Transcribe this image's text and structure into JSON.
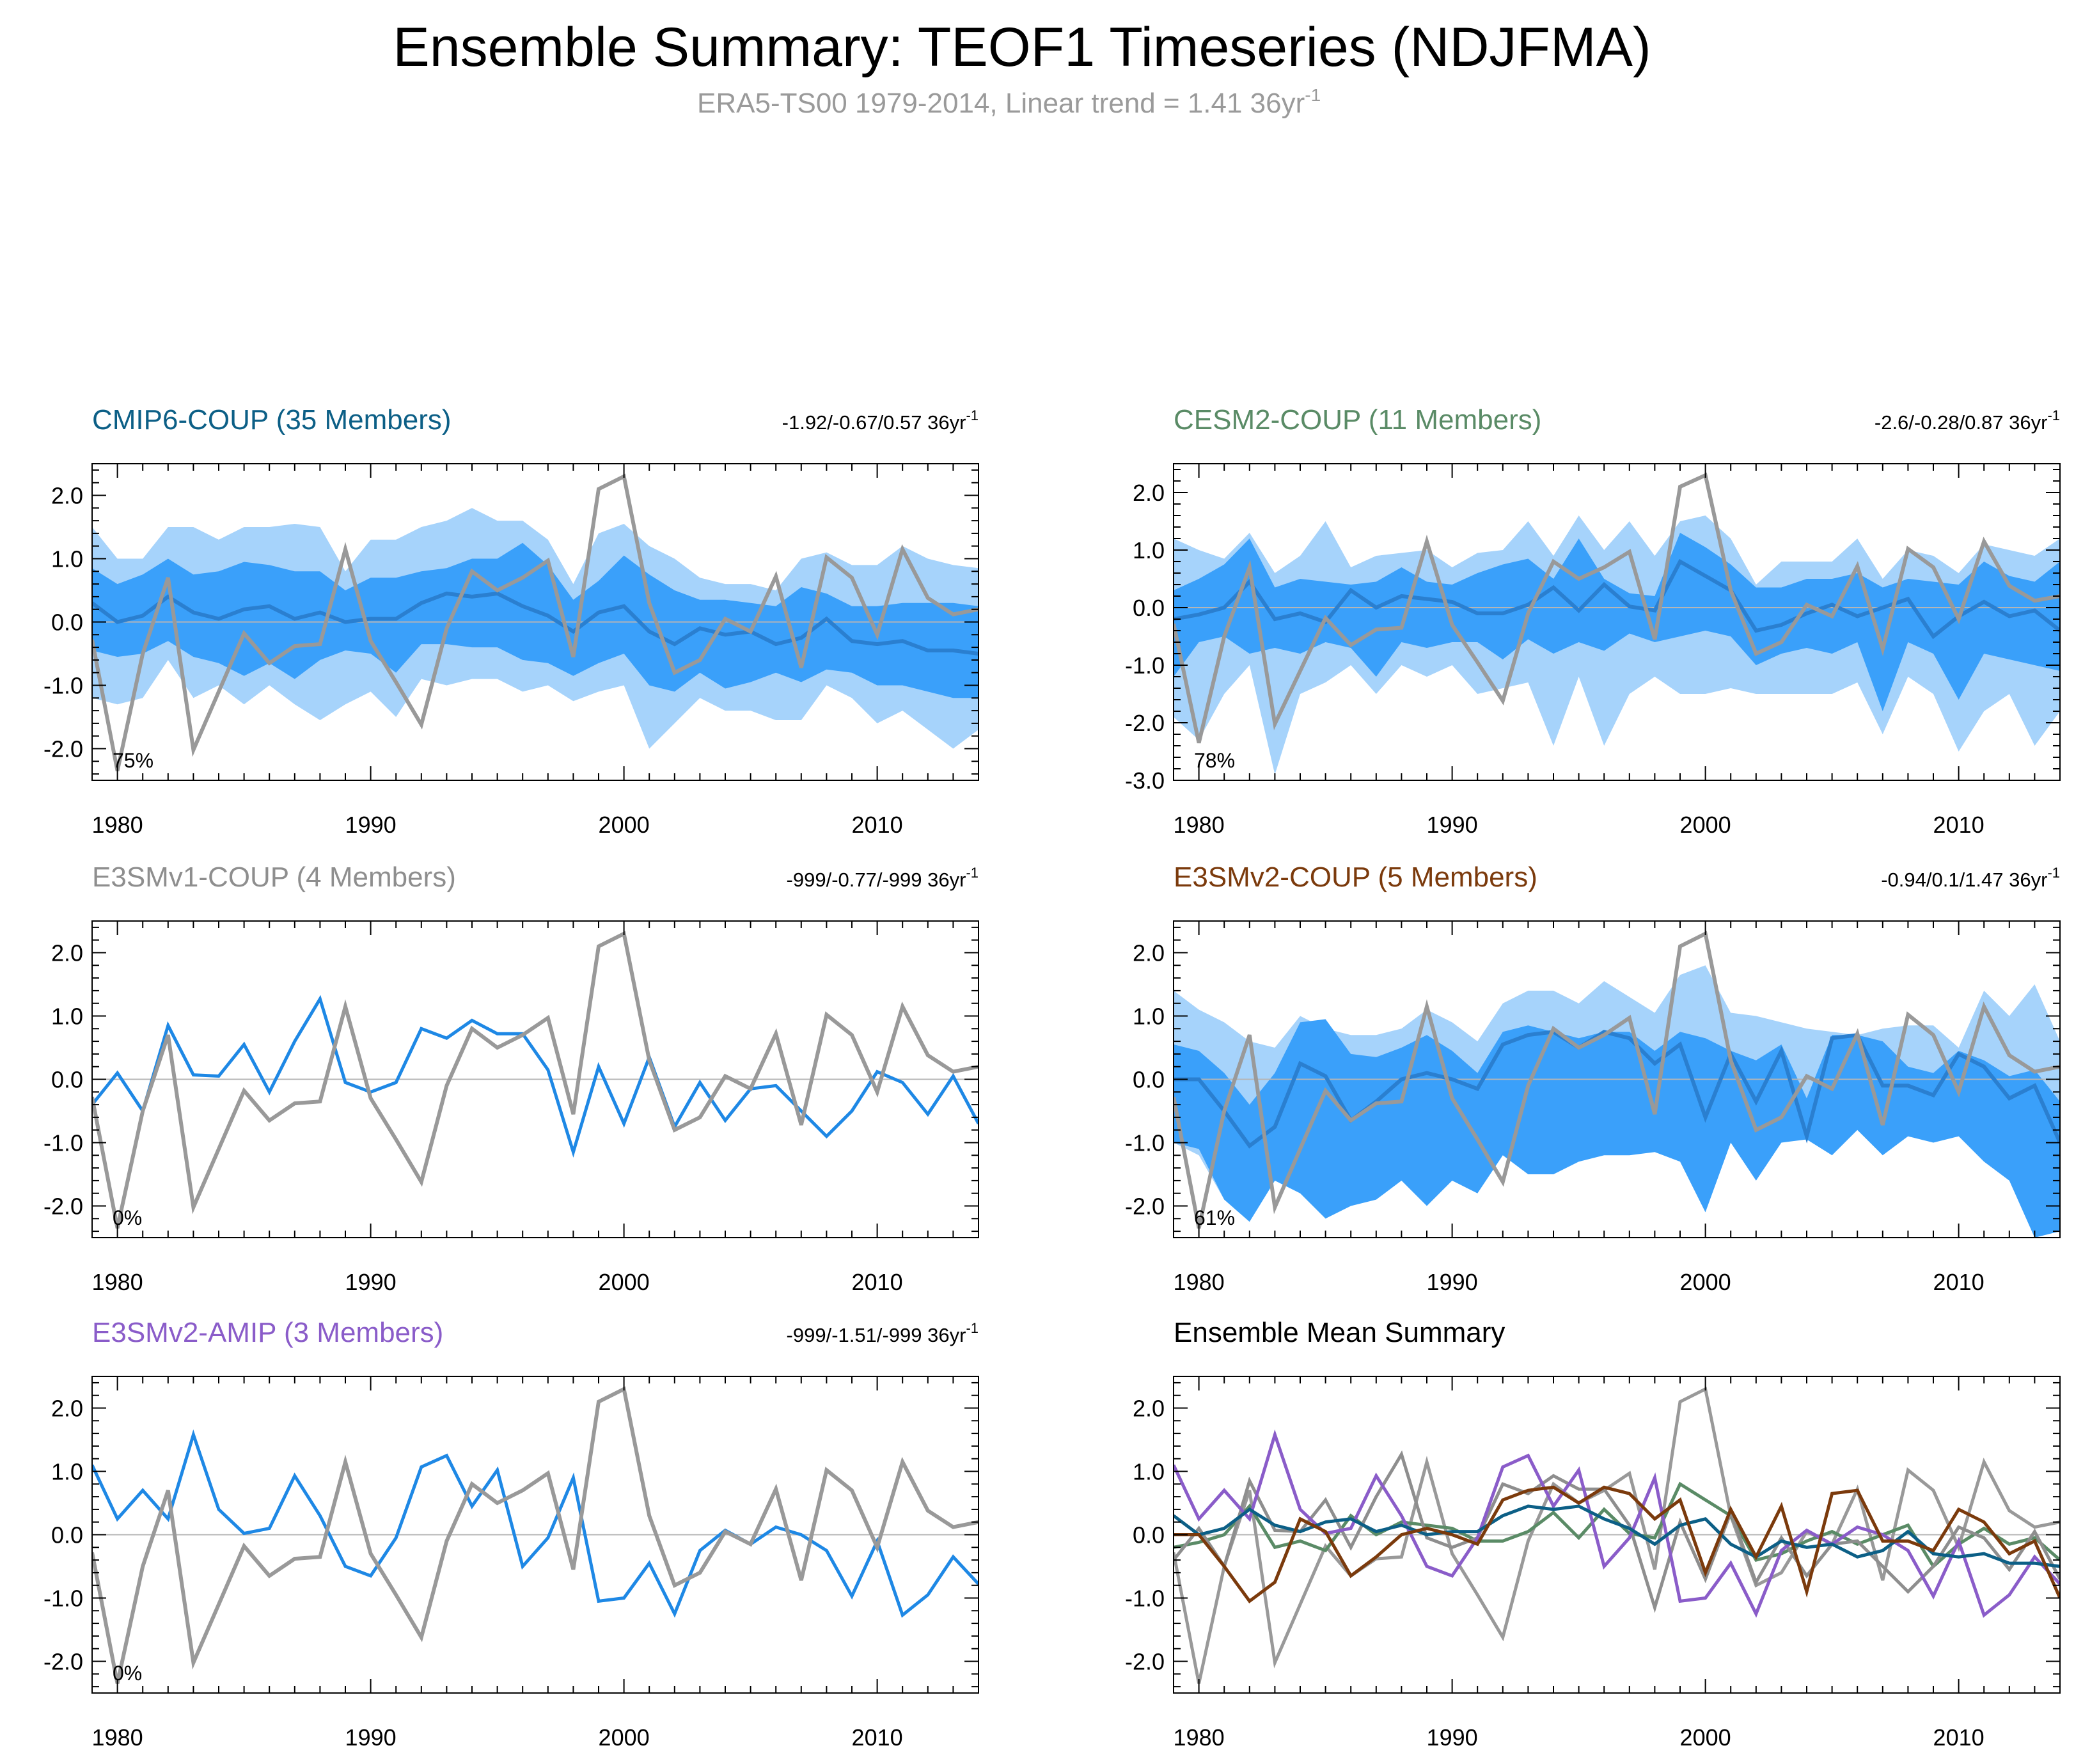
{
  "figure": {
    "title": "Ensemble Summary: TEOF1 Timeseries (NDJFMA)",
    "subtitle": "ERA5-TS00 1979-2014, Linear trend = 1.41 36yr",
    "subtitle_sup": "-1"
  },
  "colors": {
    "observed": "#999999",
    "member": "#1e88e5",
    "band_outer": "#a6d3fb",
    "band_inner": "#3aa0fa",
    "band_mean": "#2a7fd0",
    "cmip6": "#0c5f86",
    "cesm2": "#5a8b66",
    "e3smv1": "#8e8e8e",
    "e3smv2coup": "#7b3a0c",
    "e3smv2amip": "#8a5cc9",
    "black": "#000000"
  },
  "chart_data": [
    {
      "id": "cmip6",
      "type": "line",
      "title": "CMIP6-COUP (35 Members)",
      "title_color": "#0c5f86",
      "trend_text": "-1.92/-0.67/0.57 36yr",
      "trend_sup": "-1",
      "pct_label": "75%",
      "xlim": [
        1979,
        2014
      ],
      "ylim": [
        -2.5,
        2.5
      ],
      "yticks": [
        -2.0,
        -1.0,
        0.0,
        1.0,
        2.0
      ],
      "ytick_labels": [
        "-2.0",
        "-1.0",
        "0.0",
        "1.0",
        "2.0"
      ],
      "xticks": [
        1980,
        1990,
        2000,
        2010
      ],
      "xtick_labels": [
        "1980",
        "1990",
        "2000",
        "2010"
      ],
      "years_start": 1979,
      "band_outer_upper": [
        1.5,
        1.0,
        1.0,
        1.5,
        1.5,
        1.3,
        1.5,
        1.5,
        1.55,
        1.5,
        0.8,
        1.3,
        1.3,
        1.5,
        1.6,
        1.8,
        1.6,
        1.6,
        1.3,
        0.6,
        1.4,
        1.55,
        1.2,
        1.0,
        0.7,
        0.6,
        0.6,
        0.5,
        1.0,
        1.1,
        0.9,
        0.9,
        1.2,
        1.0,
        0.9,
        0.85
      ],
      "band_outer_lower": [
        -1.2,
        -1.3,
        -1.2,
        -0.6,
        -1.2,
        -1.0,
        -1.3,
        -1.0,
        -1.3,
        -1.55,
        -1.3,
        -1.1,
        -1.5,
        -0.9,
        -1.0,
        -0.9,
        -0.9,
        -1.1,
        -1.0,
        -1.25,
        -1.1,
        -1.0,
        -2.0,
        -1.6,
        -1.2,
        -1.4,
        -1.4,
        -1.55,
        -1.55,
        -1.0,
        -1.2,
        -1.6,
        -1.4,
        -1.7,
        -2.0,
        -1.7
      ],
      "band_inner_upper": [
        0.85,
        0.6,
        0.75,
        1.0,
        0.75,
        0.8,
        0.95,
        0.9,
        0.8,
        0.8,
        0.5,
        0.7,
        0.7,
        0.8,
        0.85,
        1.0,
        1.0,
        1.25,
        0.9,
        0.35,
        0.65,
        1.05,
        0.75,
        0.5,
        0.35,
        0.35,
        0.3,
        0.25,
        0.55,
        0.45,
        0.25,
        0.25,
        0.3,
        0.3,
        0.3,
        0.25
      ],
      "band_inner_lower": [
        -0.45,
        -0.55,
        -0.5,
        -0.3,
        -0.55,
        -0.65,
        -0.85,
        -0.65,
        -0.9,
        -0.6,
        -0.45,
        -0.5,
        -0.8,
        -0.35,
        -0.35,
        -0.4,
        -0.4,
        -0.6,
        -0.65,
        -0.85,
        -0.65,
        -0.5,
        -1.0,
        -1.1,
        -0.8,
        -1.05,
        -0.95,
        -0.8,
        -0.95,
        -0.75,
        -0.8,
        -1.0,
        -1.0,
        -1.1,
        -1.2,
        -1.2
      ],
      "mean": [
        0.3,
        0.0,
        0.1,
        0.4,
        0.15,
        0.05,
        0.2,
        0.25,
        0.05,
        0.15,
        0.0,
        0.05,
        0.05,
        0.3,
        0.45,
        0.4,
        0.45,
        0.25,
        0.1,
        -0.15,
        0.15,
        0.25,
        -0.15,
        -0.35,
        -0.1,
        -0.2,
        -0.15,
        -0.35,
        -0.25,
        0.05,
        -0.3,
        -0.35,
        -0.3,
        -0.45,
        -0.45,
        -0.5
      ],
      "mean_color": "#2a7fd0",
      "observed": [
        -0.28,
        -2.35,
        -0.5,
        0.7,
        -2.02,
        -1.1,
        -0.18,
        -0.65,
        -0.38,
        -0.35,
        1.15,
        -0.3,
        -0.95,
        -1.62,
        -0.1,
        0.8,
        0.5,
        0.7,
        0.97,
        -0.55,
        2.1,
        2.3,
        0.3,
        -0.8,
        -0.6,
        0.05,
        -0.15,
        0.72,
        -0.72,
        1.02,
        0.7,
        -0.2,
        1.15,
        0.38,
        0.12,
        0.2
      ]
    },
    {
      "id": "cesm2",
      "type": "line",
      "title": "CESM2-COUP (11 Members)",
      "title_color": "#5a8b66",
      "trend_text": "-2.6/-0.28/0.87 36yr",
      "trend_sup": "-1",
      "pct_label": "78%",
      "xlim": [
        1979,
        2014
      ],
      "ylim": [
        -3.0,
        2.5
      ],
      "yticks": [
        -3.0,
        -2.0,
        -1.0,
        0.0,
        1.0,
        2.0
      ],
      "ytick_labels": [
        "-3.0",
        "-2.0",
        "-1.0",
        "0.0",
        "1.0",
        "2.0"
      ],
      "xticks": [
        1980,
        1990,
        2000,
        2010
      ],
      "xtick_labels": [
        "1980",
        "1990",
        "2000",
        "2010"
      ],
      "years_start": 1979,
      "band_outer_upper": [
        1.2,
        1.0,
        0.85,
        1.3,
        0.6,
        0.9,
        1.5,
        0.7,
        0.9,
        0.95,
        1.0,
        0.7,
        0.95,
        1.0,
        1.5,
        0.9,
        1.6,
        1.0,
        1.5,
        0.9,
        1.5,
        1.6,
        1.2,
        0.4,
        0.8,
        0.8,
        0.8,
        1.2,
        0.5,
        1.0,
        0.9,
        0.6,
        1.1,
        1.0,
        0.9,
        1.2
      ],
      "band_outer_lower": [
        -1.9,
        -2.3,
        -1.5,
        -1.0,
        -2.9,
        -1.5,
        -1.3,
        -1.0,
        -1.5,
        -1.0,
        -1.2,
        -1.0,
        -1.5,
        -1.4,
        -1.3,
        -2.4,
        -1.2,
        -2.4,
        -1.5,
        -1.2,
        -1.5,
        -1.5,
        -1.4,
        -1.5,
        -1.5,
        -1.5,
        -1.5,
        -1.3,
        -2.2,
        -1.2,
        -1.5,
        -2.5,
        -1.8,
        -1.5,
        -2.4,
        -1.8
      ],
      "band_inner_upper": [
        0.3,
        0.5,
        0.75,
        1.2,
        0.35,
        0.5,
        0.45,
        0.4,
        0.45,
        0.7,
        0.45,
        0.4,
        0.6,
        0.75,
        0.85,
        0.5,
        1.2,
        0.5,
        0.25,
        0.2,
        1.3,
        1.05,
        0.75,
        0.35,
        0.35,
        0.5,
        0.5,
        0.6,
        0.35,
        0.5,
        0.45,
        0.4,
        0.8,
        0.55,
        0.45,
        0.8
      ],
      "band_inner_lower": [
        -1.2,
        -0.6,
        -0.5,
        -0.8,
        -0.7,
        -0.8,
        -0.6,
        -0.7,
        -1.2,
        -0.6,
        -0.7,
        -0.6,
        -0.6,
        -0.9,
        -0.55,
        -0.8,
        -0.6,
        -0.75,
        -0.45,
        -0.6,
        -0.5,
        -0.4,
        -0.5,
        -1.0,
        -0.8,
        -0.7,
        -0.8,
        -0.6,
        -1.8,
        -0.6,
        -0.8,
        -1.6,
        -0.8,
        -0.9,
        -1.0,
        -1.1
      ],
      "mean": [
        -0.2,
        -0.12,
        0.0,
        0.45,
        -0.2,
        -0.1,
        -0.25,
        0.3,
        0.0,
        0.2,
        0.15,
        0.1,
        -0.1,
        -0.1,
        0.05,
        0.35,
        -0.05,
        0.4,
        0.02,
        -0.05,
        0.8,
        0.55,
        0.3,
        -0.4,
        -0.3,
        -0.1,
        0.05,
        -0.15,
        0.0,
        0.15,
        -0.5,
        -0.15,
        0.1,
        -0.15,
        -0.05,
        -0.4
      ],
      "mean_color": "#2a7fd0",
      "observed": [
        -0.28,
        -2.35,
        -0.5,
        0.7,
        -2.02,
        -1.1,
        -0.18,
        -0.65,
        -0.38,
        -0.35,
        1.15,
        -0.3,
        -0.95,
        -1.62,
        -0.1,
        0.8,
        0.5,
        0.7,
        0.97,
        -0.55,
        2.1,
        2.3,
        0.3,
        -0.8,
        -0.6,
        0.05,
        -0.15,
        0.72,
        -0.72,
        1.02,
        0.7,
        -0.2,
        1.15,
        0.38,
        0.12,
        0.2
      ]
    },
    {
      "id": "e3smv1",
      "type": "line",
      "title": "E3SMv1-COUP (4 Members)",
      "title_color": "#8e8e8e",
      "trend_text": "-999/-0.77/-999 36yr",
      "trend_sup": "-1",
      "pct_label": "0%",
      "xlim": [
        1979,
        2014
      ],
      "ylim": [
        -2.5,
        2.5
      ],
      "yticks": [
        -2.0,
        -1.0,
        0.0,
        1.0,
        2.0
      ],
      "ytick_labels": [
        "-2.0",
        "-1.0",
        "0.0",
        "1.0",
        "2.0"
      ],
      "xticks": [
        1980,
        1990,
        2000,
        2010
      ],
      "xtick_labels": [
        "1980",
        "1990",
        "2000",
        "2010"
      ],
      "years_start": 1979,
      "member": [
        -0.4,
        0.1,
        -0.5,
        0.85,
        0.07,
        0.05,
        0.55,
        -0.2,
        0.6,
        1.27,
        -0.05,
        -0.2,
        -0.05,
        0.8,
        0.65,
        0.93,
        0.72,
        0.72,
        0.15,
        -1.15,
        0.2,
        -0.7,
        0.35,
        -0.75,
        -0.05,
        -0.65,
        -0.15,
        -0.1,
        -0.5,
        -0.9,
        -0.5,
        0.12,
        -0.05,
        -0.55,
        0.05,
        -0.7
      ],
      "observed": [
        -0.28,
        -2.35,
        -0.5,
        0.7,
        -2.02,
        -1.1,
        -0.18,
        -0.65,
        -0.38,
        -0.35,
        1.15,
        -0.3,
        -0.95,
        -1.62,
        -0.1,
        0.8,
        0.5,
        0.7,
        0.97,
        -0.55,
        2.1,
        2.3,
        0.3,
        -0.8,
        -0.6,
        0.05,
        -0.15,
        0.72,
        -0.72,
        1.02,
        0.7,
        -0.2,
        1.15,
        0.38,
        0.12,
        0.2
      ]
    },
    {
      "id": "e3smv2coup",
      "type": "line",
      "title": "E3SMv2-COUP (5 Members)",
      "title_color": "#7b3a0c",
      "trend_text": "-0.94/0.1/1.47 36yr",
      "trend_sup": "-1",
      "pct_label": "61%",
      "xlim": [
        1979,
        2014
      ],
      "ylim": [
        -2.5,
        2.5
      ],
      "yticks": [
        -2.0,
        -1.0,
        0.0,
        1.0,
        2.0
      ],
      "ytick_labels": [
        "-2.0",
        "-1.0",
        "0.0",
        "1.0",
        "2.0"
      ],
      "xticks": [
        1980,
        1990,
        2000,
        2010
      ],
      "xtick_labels": [
        "1980",
        "1990",
        "2000",
        "2010"
      ],
      "years_start": 1979,
      "band_outer_upper": [
        1.4,
        1.1,
        0.9,
        0.6,
        0.5,
        1.0,
        0.8,
        0.7,
        0.7,
        0.8,
        1.1,
        0.9,
        0.6,
        1.2,
        1.4,
        1.4,
        1.2,
        1.55,
        1.3,
        1.05,
        1.65,
        1.8,
        1.05,
        1.0,
        0.9,
        0.8,
        0.75,
        0.7,
        0.8,
        0.85,
        0.85,
        0.5,
        1.4,
        1.0,
        1.5,
        0.6
      ],
      "band_outer_lower": [
        -1.0,
        -1.2,
        -1.9,
        -1.9,
        -1.0,
        -1.0,
        -1.5,
        -1.3,
        -1.3,
        -1.1,
        -1.1,
        -0.6,
        -0.9,
        -1.1,
        -1.1,
        -1.3,
        -0.7,
        -0.6,
        -1.1,
        -1.0,
        -1.0,
        -1.2,
        -0.6,
        -0.7,
        -0.5,
        -0.5,
        -0.7,
        -0.5,
        -1.0,
        -0.8,
        -0.9,
        -0.75,
        -1.1,
        -1.4,
        -2.4,
        -1.5
      ],
      "band_inner_upper": [
        0.55,
        0.45,
        0.1,
        -0.4,
        0.1,
        0.9,
        0.95,
        0.4,
        0.35,
        0.5,
        0.7,
        0.45,
        0.1,
        0.75,
        0.85,
        0.75,
        0.65,
        0.75,
        0.75,
        0.45,
        0.75,
        0.65,
        0.45,
        0.3,
        0.55,
        -0.3,
        0.7,
        0.7,
        0.6,
        0.2,
        0.1,
        0.45,
        0.3,
        0.05,
        0.15,
        -0.35
      ],
      "band_inner_lower": [
        -1.0,
        -1.1,
        -1.9,
        -2.25,
        -1.6,
        -1.8,
        -2.2,
        -2.0,
        -1.9,
        -1.6,
        -2.0,
        -1.6,
        -1.8,
        -1.2,
        -1.5,
        -1.5,
        -1.3,
        -1.2,
        -1.2,
        -1.15,
        -1.3,
        -2.1,
        -1.0,
        -1.6,
        -1.0,
        -0.95,
        -1.2,
        -0.8,
        -1.2,
        -0.9,
        -1.0,
        -0.9,
        -1.3,
        -1.6,
        -2.5,
        -2.4
      ],
      "mean": [
        0.0,
        0.0,
        -0.5,
        -1.05,
        -0.75,
        0.25,
        0.05,
        -0.65,
        -0.35,
        0.0,
        0.1,
        0.0,
        -0.15,
        0.55,
        0.7,
        0.75,
        0.5,
        0.75,
        0.65,
        0.25,
        0.55,
        -0.6,
        0.4,
        -0.35,
        0.45,
        -0.9,
        0.65,
        0.7,
        -0.1,
        -0.1,
        -0.25,
        0.4,
        0.2,
        -0.3,
        -0.1,
        -1.0
      ],
      "mean_color": "#2a7fd0",
      "observed": [
        -0.28,
        -2.35,
        -0.5,
        0.7,
        -2.02,
        -1.1,
        -0.18,
        -0.65,
        -0.38,
        -0.35,
        1.15,
        -0.3,
        -0.95,
        -1.62,
        -0.1,
        0.8,
        0.5,
        0.7,
        0.97,
        -0.55,
        2.1,
        2.3,
        0.3,
        -0.8,
        -0.6,
        0.05,
        -0.15,
        0.72,
        -0.72,
        1.02,
        0.7,
        -0.2,
        1.15,
        0.38,
        0.12,
        0.2
      ]
    },
    {
      "id": "e3smv2amip",
      "type": "line",
      "title": "E3SMv2-AMIP (3 Members)",
      "title_color": "#8a5cc9",
      "trend_text": "-999/-1.51/-999 36yr",
      "trend_sup": "-1",
      "pct_label": "0%",
      "xlim": [
        1979,
        2014
      ],
      "ylim": [
        -2.5,
        2.5
      ],
      "yticks": [
        -2.0,
        -1.0,
        0.0,
        1.0,
        2.0
      ],
      "ytick_labels": [
        "-2.0",
        "-1.0",
        "0.0",
        "1.0",
        "2.0"
      ],
      "xticks": [
        1980,
        1990,
        2000,
        2010
      ],
      "xtick_labels": [
        "1980",
        "1990",
        "2000",
        "2010"
      ],
      "years_start": 1979,
      "member": [
        1.1,
        0.25,
        0.7,
        0.25,
        1.58,
        0.4,
        0.02,
        0.1,
        0.93,
        0.3,
        -0.5,
        -0.65,
        -0.05,
        1.07,
        1.25,
        0.45,
        1.02,
        -0.5,
        -0.05,
        0.9,
        -1.05,
        -1.0,
        -0.45,
        -1.25,
        -0.25,
        0.07,
        -0.15,
        0.12,
        0.0,
        -0.25,
        -0.97,
        -0.1,
        -1.27,
        -0.95,
        -0.35,
        -0.78
      ],
      "observed": [
        -0.28,
        -2.35,
        -0.5,
        0.7,
        -2.02,
        -1.1,
        -0.18,
        -0.65,
        -0.38,
        -0.35,
        1.15,
        -0.3,
        -0.95,
        -1.62,
        -0.1,
        0.8,
        0.5,
        0.7,
        0.97,
        -0.55,
        2.1,
        2.3,
        0.3,
        -0.8,
        -0.6,
        0.05,
        -0.15,
        0.72,
        -0.72,
        1.02,
        0.7,
        -0.2,
        1.15,
        0.38,
        0.12,
        0.2
      ]
    },
    {
      "id": "summary",
      "type": "line",
      "title": "Ensemble Mean Summary",
      "title_color": "#000000",
      "xlim": [
        1979,
        2014
      ],
      "ylim": [
        -2.5,
        2.5
      ],
      "yticks": [
        -2.0,
        -1.0,
        0.0,
        1.0,
        2.0
      ],
      "ytick_labels": [
        "-2.0",
        "-1.0",
        "0.0",
        "1.0",
        "2.0"
      ],
      "xticks": [
        1980,
        1990,
        2000,
        2010
      ],
      "xtick_labels": [
        "1980",
        "1990",
        "2000",
        "2010"
      ],
      "years_start": 1979,
      "series_order": [
        "observed",
        "cesm2",
        "e3smv1",
        "e3smv2amip",
        "cmip6",
        "e3smv2coup"
      ]
    }
  ]
}
